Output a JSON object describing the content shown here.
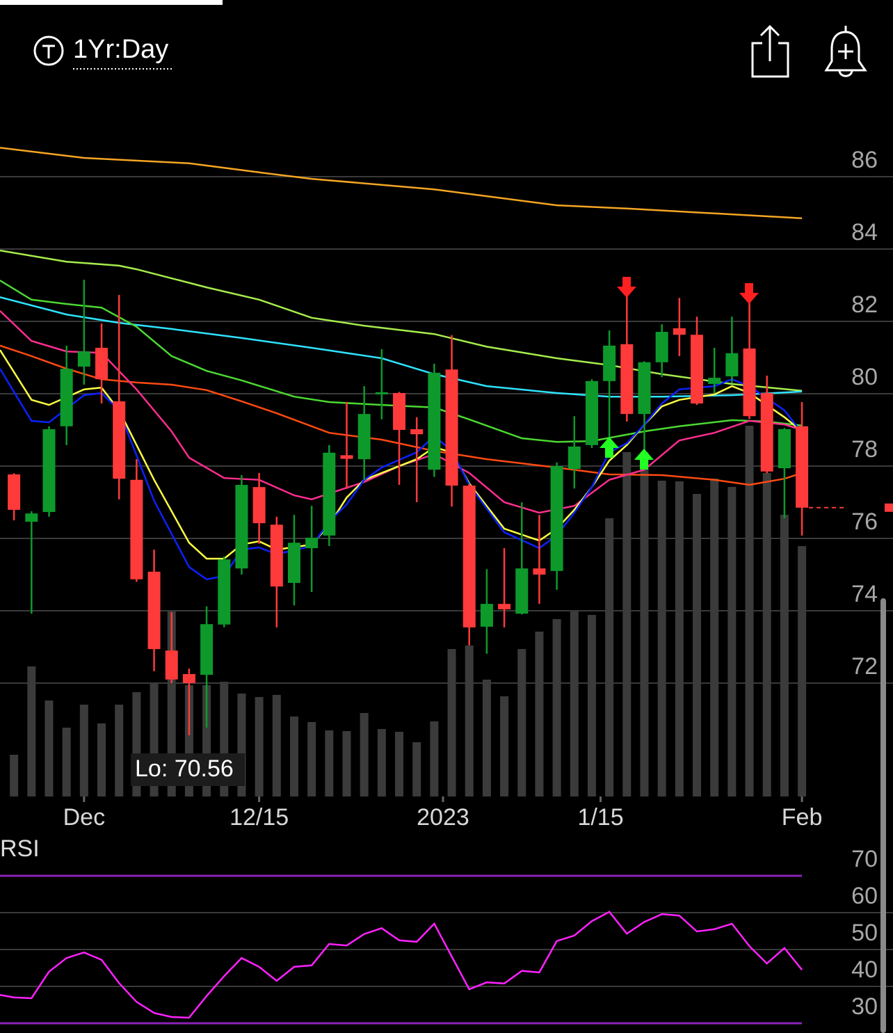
{
  "header": {
    "title": "1Yr:Day"
  },
  "chart_data": [
    {
      "type": "candlestick",
      "x": [
        0,
        1,
        2,
        3,
        4,
        5,
        6,
        7,
        8,
        9,
        10,
        11,
        12,
        13,
        14,
        15,
        16,
        17,
        18,
        19,
        20,
        21,
        22,
        23,
        24,
        25,
        26,
        27,
        28,
        29,
        30,
        31,
        32,
        33,
        34,
        35,
        36,
        37,
        38,
        39,
        40,
        41,
        42,
        43,
        44,
        45
      ],
      "open": [
        77.77,
        76.46,
        76.73,
        79.1,
        80.75,
        81.27,
        79.79,
        77.62,
        75.08,
        72.9,
        72.25,
        72.23,
        73.62,
        75.17,
        77.42,
        76.38,
        74.77,
        75.73,
        76.08,
        78.3,
        78.19,
        80.0,
        80.02,
        79.02,
        77.9,
        80.67,
        77.46,
        73.56,
        74.19,
        73.92,
        75.17,
        75.1,
        77.92,
        78.58,
        80.35,
        81.37,
        79.44,
        80.87,
        81.81,
        81.63,
        80.27,
        80.48,
        81.25,
        80.02,
        77.94,
        79.1
      ],
      "high": [
        77.8,
        76.75,
        79.1,
        81.33,
        83.15,
        81.94,
        82.73,
        78.19,
        75.69,
        73.96,
        72.4,
        74.12,
        75.5,
        77.75,
        77.81,
        76.6,
        76.65,
        76.9,
        78.58,
        79.77,
        80.21,
        81.23,
        80.05,
        79.35,
        80.83,
        81.62,
        77.5,
        75.15,
        75.73,
        77.0,
        76.65,
        78.1,
        79.38,
        80.4,
        81.75,
        82.71,
        80.9,
        81.92,
        82.65,
        82.13,
        81.27,
        82.13,
        82.58,
        80.5,
        79.05,
        79.77
      ],
      "low": [
        76.5,
        73.92,
        76.6,
        78.58,
        80.25,
        79.73,
        77.08,
        74.8,
        72.33,
        72.0,
        70.56,
        70.77,
        73.54,
        75.0,
        75.85,
        73.54,
        74.15,
        74.52,
        75.79,
        77.37,
        77.62,
        79.29,
        77.48,
        77.0,
        77.7,
        76.88,
        73.04,
        72.81,
        73.54,
        73.9,
        74.19,
        74.58,
        77.38,
        78.5,
        78.29,
        79.23,
        78.19,
        80.46,
        81.04,
        79.69,
        80.02,
        80.3,
        79.3,
        77.8,
        76.56,
        76.08
      ],
      "close": [
        76.79,
        76.69,
        79.02,
        80.69,
        81.17,
        80.4,
        77.65,
        74.87,
        72.94,
        72.1,
        72.0,
        73.63,
        75.42,
        77.48,
        76.42,
        74.67,
        75.88,
        76.02,
        78.37,
        78.2,
        79.44,
        80.04,
        79.0,
        78.88,
        80.58,
        77.46,
        73.54,
        74.19,
        74.04,
        75.17,
        75.0,
        78.0,
        78.54,
        80.35,
        81.33,
        79.44,
        80.87,
        81.71,
        81.63,
        79.73,
        80.44,
        81.12,
        79.38,
        77.85,
        79.02,
        76.85
      ],
      "volume": [
        12,
        37.4,
        27.6,
        19.8,
        26.4,
        21,
        26.4,
        30,
        32.6,
        53.4,
        32,
        32,
        33,
        29.6,
        28.6,
        29.2,
        23,
        21.4,
        19,
        18.8,
        24,
        19.4,
        18.6,
        15.6,
        21.6,
        42.4,
        43.4,
        33.6,
        28.8,
        42.4,
        47.4,
        51,
        53.2,
        52.2,
        80,
        99,
        99,
        90.8,
        90.6,
        87,
        91.4,
        89,
        106.6,
        93,
        81,
        72
      ],
      "volume_ylim": [
        0,
        110
      ],
      "up_color": "#0d9a2b",
      "down_color": "#ff3a3a",
      "volume_color": "#3b3b3b",
      "series": [
        {
          "color": "#f5a623",
          "x": [
            -0.8,
            4,
            10,
            14,
            17,
            24,
            31,
            35,
            45
          ],
          "values": [
            86.8,
            86.52,
            86.37,
            86.12,
            85.94,
            85.65,
            85.21,
            85.12,
            84.85
          ]
        },
        {
          "color": "#a6ec4c",
          "x": [
            -0.8,
            3,
            6,
            7,
            11,
            14,
            17,
            20,
            24,
            27,
            31,
            34,
            37,
            41,
            45
          ],
          "values": [
            83.96,
            83.65,
            83.54,
            83.44,
            82.94,
            82.6,
            82.1,
            81.88,
            81.65,
            81.3,
            80.98,
            80.79,
            80.54,
            80.27,
            80.08
          ]
        },
        {
          "color": "#2fe3ff",
          "x": [
            -0.8,
            3,
            6,
            9,
            13,
            17,
            21,
            24,
            27,
            31,
            34,
            37,
            41,
            45
          ],
          "values": [
            82.67,
            82.19,
            81.96,
            81.79,
            81.54,
            81.27,
            80.98,
            80.54,
            80.21,
            80.02,
            79.92,
            79.92,
            79.96,
            80.06
          ]
        },
        {
          "color": "#4cd832",
          "x": [
            -0.8,
            1,
            3,
            5,
            7,
            9,
            11,
            13,
            16,
            18,
            21,
            24,
            26,
            29,
            31,
            33,
            36,
            38,
            41,
            43,
            45
          ],
          "values": [
            83.13,
            82.6,
            82.48,
            82.38,
            81.85,
            81.04,
            80.63,
            80.37,
            79.92,
            79.77,
            79.69,
            79.62,
            79.29,
            78.77,
            78.67,
            78.69,
            78.96,
            79.1,
            79.27,
            79.23,
            79.12
          ]
        },
        {
          "color": "#ff4a12",
          "x": [
            -0.8,
            1,
            3,
            5,
            7,
            9,
            11,
            13,
            15,
            18,
            21,
            24,
            27,
            31,
            34,
            37,
            40,
            42,
            44,
            45
          ],
          "values": [
            81.33,
            81.04,
            80.69,
            80.4,
            80.31,
            80.25,
            80.1,
            79.79,
            79.46,
            78.92,
            78.73,
            78.42,
            78.19,
            77.96,
            77.77,
            77.75,
            77.62,
            77.48,
            77.65,
            77.81
          ]
        },
        {
          "color": "#ff2d8f",
          "x": [
            -0.8,
            1,
            3,
            5,
            7,
            9,
            10,
            12,
            14,
            16,
            17,
            20,
            22,
            24,
            26,
            28,
            30,
            32,
            34,
            36,
            38,
            40,
            42,
            44,
            45
          ],
          "values": [
            82.29,
            81.46,
            81.17,
            81.13,
            80.12,
            78.96,
            78.23,
            77.67,
            77.62,
            77.19,
            77.08,
            77.56,
            78.0,
            78.33,
            77.81,
            77.0,
            76.71,
            76.9,
            77.62,
            77.9,
            78.71,
            78.92,
            79.25,
            79.15,
            79.0
          ]
        },
        {
          "color": "#ffff44",
          "x": [
            -0.8,
            1,
            2,
            4,
            5,
            6,
            8,
            10,
            11,
            12,
            13,
            14,
            15,
            17,
            18,
            19,
            20,
            21,
            23,
            24,
            25,
            26,
            28,
            30,
            31,
            32,
            33,
            34,
            35,
            36,
            37,
            38,
            40,
            41,
            42,
            44,
            45
          ],
          "values": [
            81.21,
            79.83,
            79.69,
            80.12,
            80.17,
            79.54,
            77.62,
            75.88,
            75.44,
            75.44,
            75.83,
            75.92,
            75.69,
            75.83,
            76.37,
            77.13,
            77.62,
            77.81,
            78.19,
            78.52,
            78.38,
            77.52,
            76.27,
            75.94,
            76.27,
            76.79,
            77.42,
            78.15,
            78.58,
            79.15,
            79.65,
            79.83,
            79.98,
            80.21,
            80.02,
            79.35,
            78.96
          ]
        },
        {
          "color": "#0a22ff",
          "x": [
            -0.8,
            1,
            2,
            4,
            5,
            6,
            8,
            10,
            11,
            12,
            13,
            14,
            15,
            17,
            18,
            19,
            20,
            21,
            23,
            24,
            25,
            26,
            28,
            30,
            31,
            32,
            33,
            34,
            35,
            36,
            37,
            38,
            40,
            41,
            42,
            44,
            45
          ],
          "values": [
            80.69,
            79.25,
            79.21,
            79.96,
            80.02,
            79.54,
            77.04,
            75.21,
            74.87,
            74.96,
            75.69,
            75.75,
            75.56,
            75.79,
            76.46,
            76.94,
            77.62,
            77.96,
            78.38,
            78.83,
            78.42,
            77.48,
            76.17,
            75.73,
            76.08,
            76.71,
            77.42,
            78.38,
            78.63,
            79.15,
            79.73,
            80.12,
            80.21,
            80.4,
            80.21,
            79.54,
            78.92
          ]
        }
      ],
      "xlim": [
        -0.8,
        50.2
      ],
      "xticks": [
        {
          "value": 4,
          "label": "Dec"
        },
        {
          "value": 14,
          "label": "12/15"
        },
        {
          "value": 24.5,
          "label": "2023"
        },
        {
          "value": 33.5,
          "label": "1/15"
        },
        {
          "value": 45,
          "label": "Feb"
        }
      ],
      "ylim": [
        69,
        88
      ],
      "yticks": [
        72,
        74,
        76,
        78,
        80,
        82,
        84,
        86
      ],
      "grid": true,
      "annotation": "Lo: 70.56"
    },
    {
      "type": "line",
      "title": "RSI",
      "color": "#ff22ff",
      "band_color": "#8a22b8",
      "x": [
        -0.8,
        0,
        1,
        2,
        3,
        4,
        5,
        6,
        7,
        8,
        9,
        10,
        11,
        12,
        13,
        14,
        15,
        16,
        17,
        18,
        19,
        20,
        21,
        22,
        23,
        24,
        25,
        26,
        27,
        28,
        29,
        30,
        31,
        32,
        33,
        34,
        35,
        36,
        37,
        38,
        39,
        40,
        41,
        42,
        43,
        44,
        45
      ],
      "values": [
        37.7,
        37,
        36.8,
        44,
        47.7,
        49.2,
        47.2,
        40.9,
        35.8,
        32.8,
        31.7,
        31.5,
        37.4,
        42.8,
        47.7,
        45.3,
        41.5,
        45.3,
        45.7,
        51.5,
        51.1,
        54.2,
        55.8,
        52.5,
        52.1,
        57,
        48.1,
        39.2,
        41.1,
        40.8,
        44.2,
        43.8,
        52.3,
        53.8,
        57.7,
        60.2,
        54.3,
        57.5,
        59.6,
        59.2,
        54.9,
        55.5,
        57,
        50.9,
        46.2,
        50.4,
        44.5
      ],
      "xlim": [
        -0.8,
        50.2
      ],
      "ylim": [
        30,
        70
      ],
      "yticks": [
        30,
        40,
        50,
        60,
        70
      ],
      "grid": true
    }
  ]
}
